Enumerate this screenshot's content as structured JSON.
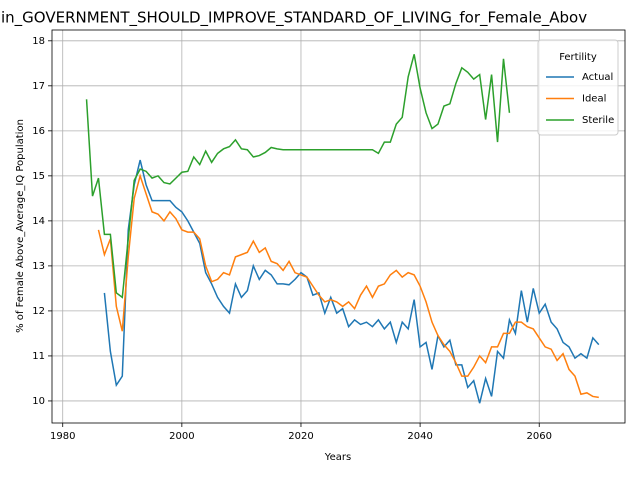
{
  "chart_data": {
    "type": "line",
    "title": "in_GOVERNMENT_SHOULD_IMPROVE_STANDARD_OF_LIVING_for_Female_Abov",
    "x_label": "Years",
    "y_label": "% of Female Above_Average_IQ Population",
    "xlim": [
      1978.2,
      2074.4
    ],
    "ylim": [
      9.51,
      18.24
    ],
    "xticks": [
      1980,
      2000,
      2020,
      2040,
      2060
    ],
    "yticks": [
      10,
      11,
      12,
      13,
      14,
      15,
      16,
      17,
      18
    ],
    "grid": true,
    "legend_title": "Fertility",
    "legend": "upper right",
    "series": [
      {
        "name": "Actual",
        "color": "#1f77b4",
        "x": [
          1987,
          1988,
          1989,
          1990,
          1991,
          1992,
          1993,
          1994,
          1995,
          1996,
          1997,
          1998,
          1999,
          2000,
          2001,
          2002,
          2003,
          2004,
          2005,
          2006,
          2007,
          2008,
          2009,
          2010,
          2011,
          2012,
          2013,
          2014,
          2015,
          2016,
          2017,
          2018,
          2019,
          2020,
          2021,
          2022,
          2023,
          2024,
          2025,
          2026,
          2027,
          2028,
          2029,
          2030,
          2031,
          2032,
          2033,
          2034,
          2035,
          2036,
          2037,
          2038,
          2039,
          2040,
          2041,
          2042,
          2043,
          2044,
          2045,
          2046,
          2047,
          2048,
          2049,
          2050,
          2051,
          2052,
          2053,
          2054,
          2055,
          2056,
          2057,
          2058,
          2059,
          2060,
          2061,
          2062,
          2063,
          2064,
          2065,
          2066,
          2067,
          2068,
          2069,
          2070
        ],
        "values": [
          12.4,
          11.1,
          10.35,
          10.55,
          13.8,
          14.8,
          15.35,
          14.8,
          14.45,
          14.45,
          14.45,
          14.45,
          14.3,
          14.2,
          14.0,
          13.75,
          13.5,
          12.85,
          12.6,
          12.3,
          12.1,
          11.95,
          12.6,
          12.3,
          12.45,
          13.0,
          12.7,
          12.9,
          12.8,
          12.6,
          12.6,
          12.58,
          12.7,
          12.85,
          12.75,
          12.35,
          12.4,
          11.95,
          12.3,
          11.95,
          12.05,
          11.65,
          11.8,
          11.7,
          11.75,
          11.65,
          11.8,
          11.6,
          11.75,
          11.3,
          11.75,
          11.6,
          12.25,
          11.2,
          11.3,
          10.7,
          11.45,
          11.2,
          11.35,
          10.8,
          10.8,
          10.3,
          10.45,
          9.95,
          10.5,
          10.1,
          11.1,
          10.95,
          11.8,
          11.5,
          12.45,
          11.75,
          12.5,
          11.95,
          12.15,
          11.75,
          11.6,
          11.3,
          11.2,
          10.95,
          11.05,
          10.95,
          11.4,
          11.25
        ]
      },
      {
        "name": "Ideal",
        "color": "#ff7f0e",
        "x": [
          1986,
          1987,
          1988,
          1989,
          1990,
          1991,
          1992,
          1993,
          1994,
          1995,
          1996,
          1997,
          1998,
          1999,
          2000,
          2001,
          2002,
          2003,
          2004,
          2005,
          2006,
          2007,
          2008,
          2009,
          2010,
          2011,
          2012,
          2013,
          2014,
          2015,
          2016,
          2017,
          2018,
          2019,
          2020,
          2021,
          2022,
          2023,
          2024,
          2025,
          2026,
          2027,
          2028,
          2029,
          2030,
          2031,
          2032,
          2033,
          2034,
          2035,
          2036,
          2037,
          2038,
          2039,
          2040,
          2041,
          2042,
          2043,
          2044,
          2045,
          2046,
          2047,
          2048,
          2049,
          2050,
          2051,
          2052,
          2053,
          2054,
          2055,
          2056,
          2057,
          2058,
          2059,
          2060,
          2061,
          2062,
          2063,
          2064,
          2065,
          2066,
          2067,
          2068,
          2069,
          2070
        ],
        "values": [
          13.8,
          13.25,
          13.6,
          12.1,
          11.55,
          13.2,
          14.5,
          15.0,
          14.6,
          14.2,
          14.15,
          14.0,
          14.2,
          14.05,
          13.8,
          13.75,
          13.75,
          13.6,
          13.0,
          12.65,
          12.7,
          12.85,
          12.8,
          13.2,
          13.25,
          13.3,
          13.55,
          13.3,
          13.4,
          13.1,
          13.05,
          12.9,
          13.1,
          12.85,
          12.8,
          12.75,
          12.55,
          12.35,
          12.2,
          12.25,
          12.2,
          12.1,
          12.2,
          12.05,
          12.35,
          12.55,
          12.3,
          12.55,
          12.6,
          12.8,
          12.9,
          12.75,
          12.85,
          12.8,
          12.55,
          12.2,
          11.75,
          11.45,
          11.25,
          11.1,
          10.85,
          10.55,
          10.55,
          10.75,
          11.0,
          10.85,
          11.2,
          11.2,
          11.5,
          11.5,
          11.75,
          11.75,
          11.65,
          11.6,
          11.4,
          11.2,
          11.15,
          10.9,
          11.05,
          10.7,
          10.55,
          10.15,
          10.18,
          10.1,
          10.08
        ]
      },
      {
        "name": "Sterile",
        "color": "#2ca02c",
        "x": [
          1984,
          1985,
          1986,
          1987,
          1988,
          1989,
          1990,
          1991,
          1992,
          1993,
          1994,
          1995,
          1996,
          1997,
          1998,
          1999,
          2000,
          2001,
          2002,
          2003,
          2004,
          2005,
          2006,
          2007,
          2008,
          2009,
          2010,
          2011,
          2012,
          2013,
          2014,
          2015,
          2016,
          2017,
          2018,
          2019,
          2020,
          2021,
          2022,
          2023,
          2024,
          2025,
          2026,
          2027,
          2028,
          2029,
          2030,
          2031,
          2032,
          2033,
          2034,
          2035,
          2036,
          2037,
          2038,
          2039,
          2040,
          2041,
          2042,
          2043,
          2044,
          2045,
          2046,
          2047,
          2048,
          2049,
          2050,
          2051,
          2052,
          2053,
          2054,
          2055
        ],
        "values": [
          16.7,
          14.55,
          14.95,
          13.7,
          13.7,
          12.4,
          12.3,
          13.6,
          14.9,
          15.15,
          15.1,
          14.95,
          15.0,
          14.85,
          14.82,
          14.95,
          15.08,
          15.1,
          15.42,
          15.25,
          15.55,
          15.3,
          15.5,
          15.6,
          15.65,
          15.8,
          15.6,
          15.58,
          15.42,
          15.45,
          15.52,
          15.63,
          15.6,
          15.58,
          15.58,
          15.58,
          15.58,
          15.58,
          15.58,
          15.58,
          15.58,
          15.58,
          15.58,
          15.58,
          15.58,
          15.58,
          15.58,
          15.58,
          15.58,
          15.5,
          15.75,
          15.75,
          16.15,
          16.3,
          17.2,
          17.7,
          16.95,
          16.4,
          16.05,
          16.15,
          16.55,
          16.6,
          17.05,
          17.4,
          17.3,
          17.15,
          17.25,
          16.25,
          17.25,
          15.75,
          17.6,
          16.4
        ]
      }
    ]
  }
}
